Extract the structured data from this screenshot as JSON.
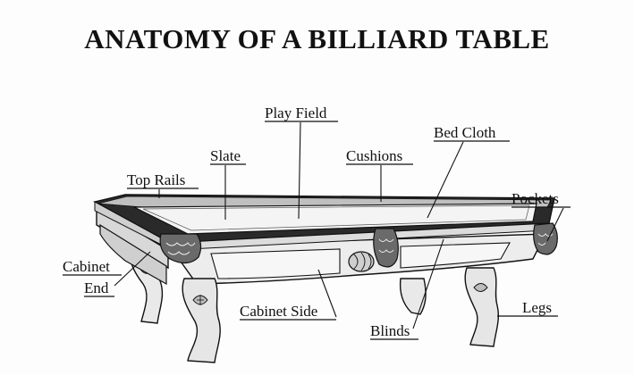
{
  "title": "ANATOMY OF A BILLIARD TABLE",
  "colors": {
    "ink": "#111111",
    "background": "#fdfdfd",
    "felt_light": "#f4f4f4",
    "rail_dark": "#2a2a2a"
  },
  "labels": {
    "play_field": "Play Field",
    "bed_cloth": "Bed Cloth",
    "slate": "Slate",
    "cushions": "Cushions",
    "top_rails": "Top Rails",
    "pockets": "Pockets",
    "cabinet_line1": "Cabinet",
    "cabinet_line2": "End",
    "cabinet_side": "Cabinet Side",
    "legs": "Legs",
    "blinds": "Blinds"
  }
}
